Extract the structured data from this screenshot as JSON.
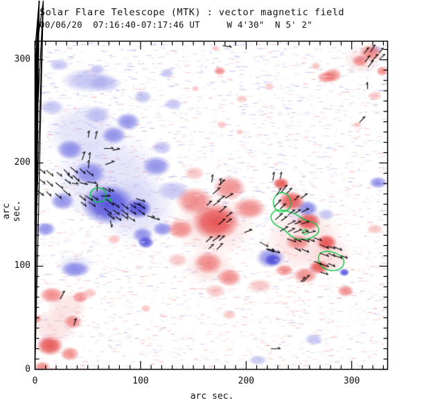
{
  "chart_data": {
    "type": "heatmap",
    "title": "Solar Flare Telescope (MTK) : vector magnetic field",
    "subtitle": "00/06/20  07:16:40-07:17:46 UT     W 4'30\"  N 5' 2\"",
    "xlabel": "arc sec.",
    "ylabel": "arc sec.",
    "axes": {
      "xlim": [
        0,
        334
      ],
      "ylim": [
        0,
        318
      ],
      "x_major_ticks": [
        0,
        100,
        200,
        300
      ],
      "y_major_ticks": [
        0,
        100,
        200,
        300
      ],
      "minor_tick_step": 10,
      "grid": false
    },
    "colors": {
      "positive_polarity": "#e43c3c",
      "negative_polarity": "#4040d8",
      "contour": "#00c83c",
      "vector": "#000000",
      "frame": "#000000",
      "background": "#ffffff"
    },
    "palette": {
      "p": [
        [
          246,
          176,
          176
        ],
        [
          242,
          150,
          150
        ],
        [
          236,
          98,
          98
        ],
        [
          228,
          60,
          60
        ]
      ],
      "n": [
        [
          172,
          172,
          240
        ],
        [
          148,
          148,
          234
        ],
        [
          104,
          104,
          226
        ],
        [
          64,
          64,
          216
        ]
      ],
      "alphas": [
        0.35,
        0.55,
        0.72,
        0.85
      ]
    },
    "blobs": [
      [
        70,
        185,
        55,
        45,
        "n",
        0
      ],
      [
        95,
        155,
        40,
        32,
        "n",
        0
      ],
      [
        45,
        230,
        35,
        28,
        "n",
        0
      ],
      [
        255,
        150,
        18,
        14,
        "n",
        0
      ],
      [
        38,
        100,
        18,
        12,
        "n",
        0
      ],
      [
        170,
        140,
        40,
        32,
        "p",
        0
      ],
      [
        255,
        125,
        40,
        32,
        "p",
        0
      ],
      [
        18,
        40,
        22,
        18,
        "p",
        0
      ],
      [
        310,
        300,
        18,
        14,
        "p",
        0
      ],
      [
        280,
        110,
        22,
        16,
        "p",
        0
      ],
      [
        165,
        100,
        25,
        18,
        "p",
        0
      ],
      [
        30,
        60,
        20,
        16,
        "p",
        0
      ],
      [
        69,
        160,
        26,
        20,
        "n",
        3
      ],
      [
        98,
        156,
        13,
        10,
        "n",
        3
      ],
      [
        105,
        123,
        8,
        6,
        "n",
        3
      ],
      [
        225,
        106,
        8,
        6,
        "n",
        3
      ],
      [
        293,
        94,
        5,
        4,
        "n",
        3
      ],
      [
        52,
        190,
        16,
        12,
        "n",
        2
      ],
      [
        33,
        213,
        13,
        10,
        "n",
        2
      ],
      [
        75,
        227,
        12,
        9,
        "n",
        2
      ],
      [
        88,
        240,
        12,
        9,
        "n",
        2
      ],
      [
        115,
        197,
        14,
        10,
        "n",
        2
      ],
      [
        26,
        163,
        12,
        9,
        "n",
        2
      ],
      [
        10,
        136,
        10,
        7,
        "n",
        2
      ],
      [
        102,
        130,
        10,
        8,
        "n",
        2
      ],
      [
        121,
        136,
        10,
        7,
        "n",
        2
      ],
      [
        38,
        97,
        14,
        8,
        "n",
        2
      ],
      [
        223,
        108,
        14,
        10,
        "n",
        2
      ],
      [
        258,
        156,
        10,
        8,
        "n",
        2
      ],
      [
        325,
        181,
        9,
        6,
        "n",
        2
      ],
      [
        59,
        247,
        13,
        9,
        "n",
        1
      ],
      [
        16,
        254,
        12,
        8,
        "n",
        1
      ],
      [
        131,
        173,
        16,
        10,
        "n",
        1
      ],
      [
        66,
        277,
        16,
        9,
        "n",
        1
      ],
      [
        125,
        287,
        7,
        5,
        "n",
        1
      ],
      [
        23,
        295,
        10,
        6,
        "n",
        1
      ],
      [
        59,
        291,
        8,
        5,
        "n",
        1
      ],
      [
        276,
        150,
        8,
        6,
        "n",
        1
      ],
      [
        322,
        310,
        7,
        4,
        "n",
        1
      ],
      [
        264,
        29,
        9,
        6,
        "n",
        1
      ],
      [
        131,
        257,
        9,
        6,
        "n",
        1
      ],
      [
        120,
        215,
        10,
        7,
        "n",
        1
      ],
      [
        50,
        280,
        25,
        12,
        "n",
        1
      ],
      [
        102,
        264,
        9,
        7,
        "n",
        1
      ],
      [
        211,
        9,
        9,
        5,
        "n",
        1
      ],
      [
        171,
        143,
        23,
        18,
        "p",
        3
      ],
      [
        243,
        163,
        13,
        10,
        "p",
        3
      ],
      [
        233,
        180,
        8,
        6,
        "p",
        3
      ],
      [
        259,
        143,
        12,
        9,
        "p",
        3
      ],
      [
        276,
        123,
        10,
        8,
        "p",
        3
      ],
      [
        269,
        99,
        10,
        7,
        "p",
        3
      ],
      [
        14,
        23,
        13,
        10,
        "p",
        3
      ],
      [
        151,
        163,
        18,
        14,
        "p",
        2
      ],
      [
        184,
        176,
        16,
        12,
        "p",
        2
      ],
      [
        138,
        136,
        13,
        10,
        "p",
        2
      ],
      [
        164,
        103,
        14,
        11,
        "p",
        2
      ],
      [
        184,
        89,
        12,
        9,
        "p",
        2
      ],
      [
        203,
        156,
        16,
        11,
        "p",
        2
      ],
      [
        249,
        123,
        12,
        8,
        "p",
        2
      ],
      [
        256,
        91,
        12,
        8,
        "p",
        2
      ],
      [
        236,
        96,
        9,
        6,
        "p",
        2
      ],
      [
        318,
        307,
        11,
        8,
        "p",
        2
      ],
      [
        308,
        299,
        8,
        6,
        "p",
        2
      ],
      [
        282,
        285,
        9,
        7,
        "p",
        2
      ],
      [
        294,
        76,
        8,
        6,
        "p",
        2
      ],
      [
        175,
        289,
        6,
        4,
        "p",
        2
      ],
      [
        276,
        283,
        9,
        6,
        "p",
        2
      ],
      [
        16,
        72,
        12,
        8,
        "p",
        2
      ],
      [
        43,
        70,
        8,
        6,
        "p",
        2
      ],
      [
        36,
        46,
        9,
        7,
        "p",
        2
      ],
      [
        33,
        15,
        9,
        7,
        "p",
        2
      ],
      [
        7,
        2,
        8,
        6,
        "p",
        2
      ],
      [
        0,
        49,
        7,
        5,
        "p",
        2
      ],
      [
        329,
        289,
        6,
        5,
        "p",
        2
      ],
      [
        151,
        190,
        10,
        7,
        "p",
        1
      ],
      [
        135,
        106,
        10,
        7,
        "p",
        1
      ],
      [
        75,
        126,
        7,
        5,
        "p",
        1
      ],
      [
        322,
        136,
        8,
        5,
        "p",
        1
      ],
      [
        222,
        274,
        5,
        4,
        "p",
        1
      ],
      [
        196,
        262,
        6,
        4,
        "p",
        1
      ],
      [
        177,
        237,
        5,
        4,
        "p",
        1
      ],
      [
        194,
        230,
        4,
        3,
        "p",
        1
      ],
      [
        152,
        272,
        4,
        3,
        "p",
        1
      ],
      [
        171,
        311,
        4,
        3,
        "p",
        1
      ],
      [
        266,
        294,
        5,
        4,
        "p",
        1
      ],
      [
        322,
        265,
        7,
        5,
        "p",
        1
      ],
      [
        105,
        59,
        5,
        4,
        "p",
        1
      ],
      [
        52,
        74,
        7,
        5,
        "p",
        1
      ],
      [
        305,
        237,
        5,
        3,
        "p",
        1
      ],
      [
        171,
        76,
        10,
        7,
        "p",
        1
      ],
      [
        213,
        81,
        12,
        7,
        "p",
        1
      ],
      [
        184,
        53,
        7,
        5,
        "p",
        1
      ]
    ],
    "contours": [
      {
        "shape": "ellipse",
        "cx": 60,
        "cy": 169,
        "rx": 7.5,
        "ry": 7
      },
      {
        "shape": "ellipse",
        "cx": 71,
        "cy": 164,
        "rx": 1.3,
        "ry": 1.3
      },
      {
        "shape": "polygon",
        "points": [
          [
            234,
            172
          ],
          [
            240,
            169
          ],
          [
            243,
            162
          ],
          [
            241,
            155
          ],
          [
            234,
            152
          ],
          [
            228,
            154
          ],
          [
            225,
            162
          ],
          [
            228,
            169
          ]
        ]
      },
      {
        "shape": "polygon",
        "points": [
          [
            228,
            155
          ],
          [
            222,
            148
          ],
          [
            227,
            140
          ],
          [
            236,
            136
          ],
          [
            243,
            128
          ],
          [
            253,
            125
          ],
          [
            264,
            128
          ],
          [
            270,
            134
          ],
          [
            266,
            142
          ],
          [
            256,
            144
          ],
          [
            248,
            150
          ],
          [
            238,
            154
          ]
        ]
      },
      {
        "shape": "ellipse",
        "cx": 256,
        "cy": 133,
        "rx": 2.6,
        "ry": 2.2
      },
      {
        "shape": "polygon",
        "points": [
          [
            269,
            113
          ],
          [
            277,
            115
          ],
          [
            287,
            112
          ],
          [
            293,
            107
          ],
          [
            292,
            99
          ],
          [
            284,
            95
          ],
          [
            274,
            97
          ],
          [
            268,
            104
          ]
        ]
      }
    ],
    "vectors": [
      [
        51,
        228,
        80
      ],
      [
        58,
        227,
        75
      ],
      [
        70,
        214,
        0
      ],
      [
        77,
        213,
        10
      ],
      [
        46,
        207,
        70
      ],
      [
        52,
        207,
        85
      ],
      [
        51,
        199,
        85
      ],
      [
        71,
        200,
        20
      ],
      [
        7,
        192,
        -40
      ],
      [
        14,
        190,
        -40
      ],
      [
        23,
        189,
        -40
      ],
      [
        30,
        191,
        -45
      ],
      [
        37,
        193,
        -40
      ],
      [
        45,
        192,
        -45
      ],
      [
        52,
        190,
        -40
      ],
      [
        7,
        182,
        -40
      ],
      [
        14,
        180,
        -45
      ],
      [
        23,
        178,
        -40
      ],
      [
        31,
        182,
        -40
      ],
      [
        5,
        171,
        -40
      ],
      [
        13,
        170,
        -45
      ],
      [
        22,
        168,
        -40
      ],
      [
        30,
        171,
        -40
      ],
      [
        33,
        187,
        -40
      ],
      [
        39,
        185,
        -45
      ],
      [
        38,
        180,
        -10
      ],
      [
        46,
        180,
        -15
      ],
      [
        54,
        181,
        -10
      ],
      [
        59,
        176,
        85
      ],
      [
        68,
        174,
        -30
      ],
      [
        72,
        174,
        -35
      ],
      [
        45,
        166,
        -40
      ],
      [
        51,
        166,
        -35
      ],
      [
        57,
        166,
        -40
      ],
      [
        67,
        168,
        0
      ],
      [
        46,
        160,
        -40
      ],
      [
        54,
        160,
        -35
      ],
      [
        71,
        162,
        -40
      ],
      [
        77,
        159,
        -40
      ],
      [
        85,
        158,
        -40
      ],
      [
        93,
        158,
        -35
      ],
      [
        101,
        158,
        -40
      ],
      [
        69,
        153,
        -40
      ],
      [
        77,
        152,
        -35
      ],
      [
        85,
        152,
        -40
      ],
      [
        93,
        152,
        -35
      ],
      [
        101,
        152,
        -40
      ],
      [
        100,
        164,
        -20
      ],
      [
        97,
        160,
        -20
      ],
      [
        72,
        148,
        -40
      ],
      [
        79,
        146,
        -35
      ],
      [
        85,
        148,
        -40
      ],
      [
        91,
        146,
        -35
      ],
      [
        110,
        148,
        -10
      ],
      [
        114,
        146,
        -15
      ],
      [
        72,
        141,
        -80
      ],
      [
        177,
        181,
        40
      ],
      [
        172,
        173,
        40
      ],
      [
        177,
        166,
        35
      ],
      [
        184,
        168,
        30
      ],
      [
        165,
        161,
        40
      ],
      [
        172,
        161,
        35
      ],
      [
        178,
        155,
        40
      ],
      [
        184,
        150,
        35
      ],
      [
        177,
        143,
        40
      ],
      [
        184,
        144,
        35
      ],
      [
        165,
        126,
        40
      ],
      [
        172,
        127,
        35
      ],
      [
        177,
        127,
        40
      ],
      [
        175,
        119,
        45
      ],
      [
        167,
        119,
        40
      ],
      [
        202,
        134,
        20
      ],
      [
        217,
        121,
        -30
      ],
      [
        223,
        115,
        -20
      ],
      [
        228,
        114,
        -15
      ],
      [
        176,
        182,
        85
      ],
      [
        168,
        185,
        80
      ],
      [
        236,
        175,
        50
      ],
      [
        241,
        173,
        45
      ],
      [
        231,
        172,
        55
      ],
      [
        248,
        166,
        40
      ],
      [
        255,
        168,
        35
      ],
      [
        230,
        161,
        45
      ],
      [
        235,
        158,
        40
      ],
      [
        243,
        152,
        35
      ],
      [
        249,
        153,
        30
      ],
      [
        256,
        154,
        25
      ],
      [
        231,
        148,
        40
      ],
      [
        236,
        146,
        35
      ],
      [
        243,
        142,
        25
      ],
      [
        249,
        142,
        20
      ],
      [
        256,
        142,
        15
      ],
      [
        236,
        136,
        30
      ],
      [
        243,
        135,
        25
      ],
      [
        249,
        134,
        20
      ],
      [
        256,
        133,
        15
      ],
      [
        262,
        133,
        10
      ],
      [
        243,
        125,
        -20
      ],
      [
        249,
        125,
        -25
      ],
      [
        256,
        125,
        -20
      ],
      [
        262,
        125,
        -25
      ],
      [
        268,
        126,
        -20
      ],
      [
        274,
        119,
        -25
      ],
      [
        281,
        118,
        -20
      ],
      [
        287,
        117,
        -25
      ],
      [
        249,
        116,
        -30
      ],
      [
        256,
        115,
        -25
      ],
      [
        274,
        111,
        -20
      ],
      [
        281,
        111,
        -25
      ],
      [
        287,
        109,
        -20
      ],
      [
        293,
        109,
        -25
      ],
      [
        268,
        103,
        -25
      ],
      [
        274,
        101,
        -20
      ],
      [
        281,
        101,
        -25
      ],
      [
        226,
        187,
        80
      ],
      [
        233,
        188,
        75
      ],
      [
        223,
        116,
        -10
      ],
      [
        257,
        88,
        45
      ],
      [
        314,
        309,
        50
      ],
      [
        320,
        311,
        55
      ],
      [
        328,
        309,
        45
      ],
      [
        315,
        301,
        50
      ],
      [
        322,
        302,
        45
      ],
      [
        329,
        303,
        40
      ],
      [
        318,
        296,
        50
      ],
      [
        315,
        275,
        90
      ],
      [
        310,
        242,
        45
      ],
      [
        26,
        72,
        60
      ],
      [
        38,
        46,
        70
      ],
      [
        182,
        313,
        -10
      ],
      [
        254,
        87,
        45
      ],
      [
        274,
        93,
        -20
      ],
      [
        228,
        20,
        0
      ]
    ],
    "noise": {
      "seed": 987654321,
      "count": 3200
    }
  }
}
